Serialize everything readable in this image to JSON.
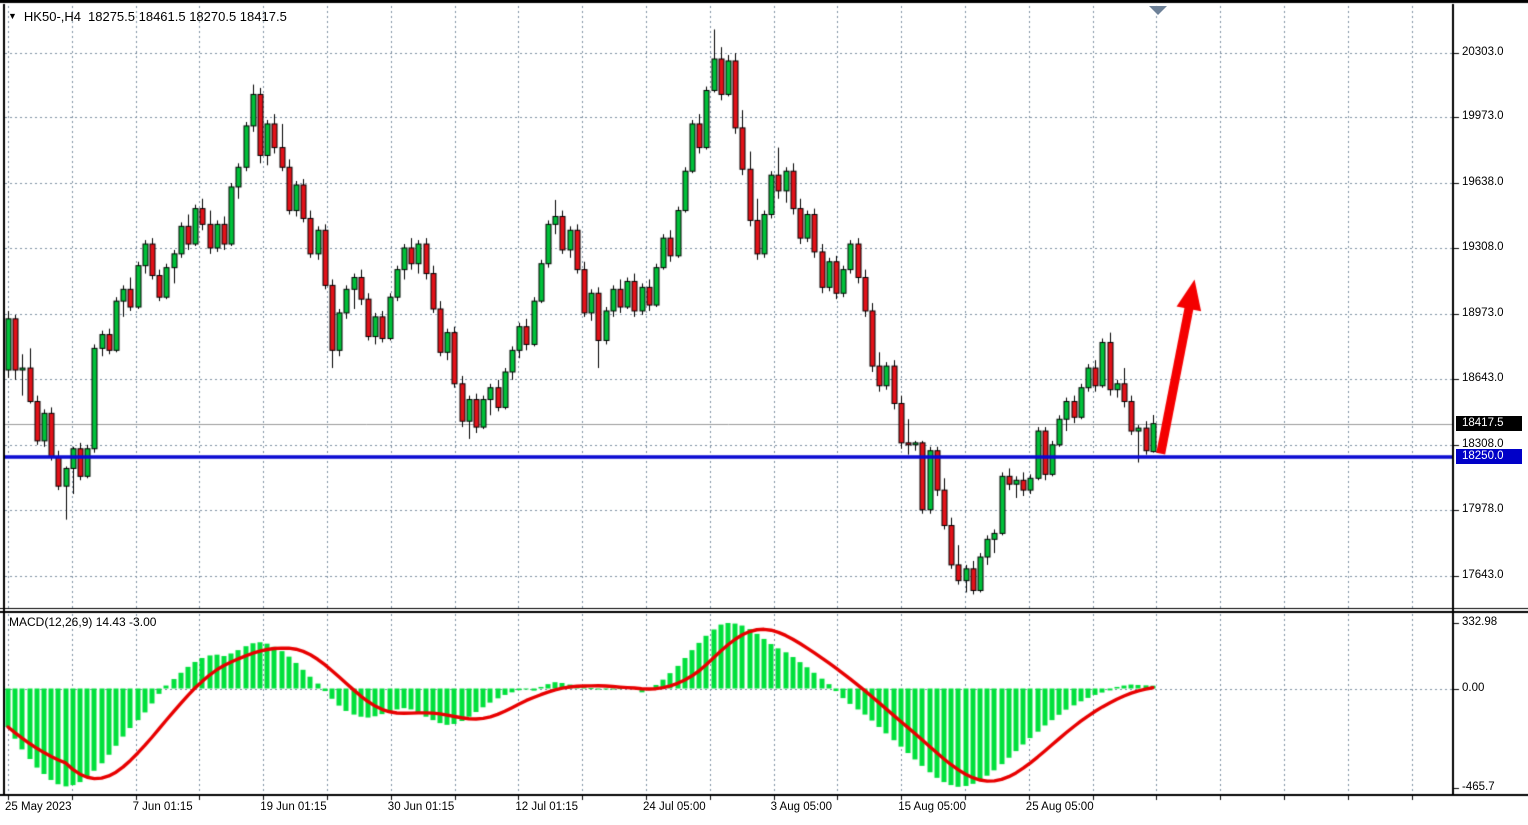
{
  "window": {
    "title_symbol": "HK50-,H4",
    "title_ohlc": "18275.5 18461.5 18270.5 18417.5"
  },
  "price_axis": {
    "labels": [
      "20303.0",
      "19973.0",
      "19638.0",
      "19308.0",
      "18973.0",
      "18643.0",
      "18308.0",
      "17978.0",
      "17643.0"
    ],
    "highlight_labels": [
      {
        "text": "18417.5",
        "kind": "current-price",
        "bg": "#000000",
        "price": 18417.5
      },
      {
        "text": "18250.0",
        "kind": "hline-price",
        "bg": "#0000c8",
        "price": 18250.0
      }
    ]
  },
  "macd_axis": {
    "labels": [
      "332.98",
      "0.00",
      "-465.7"
    ]
  },
  "time_axis": {
    "labels": [
      "25 May 2023",
      "7 Jun 01:15",
      "19 Jun 01:15",
      "30 Jun 01:15",
      "12 Jul 01:15",
      "24 Jul 05:00",
      "3 Aug 05:00",
      "15 Aug 05:00",
      "25 Aug 05:00"
    ]
  },
  "indicator": {
    "label_text": "MACD(12,26,9) 14.43 -3.00",
    "name": "MACD",
    "params": "12,26,9",
    "value": 14.43,
    "signal_value": -3.0
  },
  "colors": {
    "bull": "#00c13a",
    "bear": "#e31219",
    "candle_outline": "#000000",
    "macd_bar": "#00e03c",
    "signal_line": "#e80000",
    "grid": "#7e8fa2",
    "hline_blue": "#0a0ad2",
    "current_price_gray": "#9a9a9a",
    "arrow_red": "#f40000",
    "axis_text": "#000000",
    "border": "#000000",
    "scroll_marker": "#6c8097"
  },
  "chart_data": {
    "type": "candlestick+macd",
    "symbol": "HK50-",
    "timeframe": "H4",
    "title": "HK50- Hong Kong 50 Index, H4",
    "last_bar": {
      "open": 18275.5,
      "high": 18461.5,
      "low": 18270.5,
      "close": 18417.5
    },
    "price_gridlines": [
      20303.0,
      19973.0,
      19638.0,
      19308.0,
      18973.0,
      18643.0,
      18308.0,
      17978.0,
      17643.0
    ],
    "current_price_line": 18417.5,
    "horizontal_line": 18250.0,
    "x_tick_labels": [
      "25 May 2023",
      "7 Jun 01:15",
      "19 Jun 01:15",
      "30 Jun 01:15",
      "12 Jul 01:15",
      "24 Jul 05:00",
      "3 Aug 05:00",
      "15 Aug 05:00",
      "25 Aug 05:00"
    ],
    "candles": [
      [
        18690,
        18990,
        18650,
        18950
      ],
      [
        18950,
        18970,
        18640,
        18690
      ],
      [
        18690,
        18770,
        18560,
        18700
      ],
      [
        18700,
        18800,
        18520,
        18530
      ],
      [
        18530,
        18560,
        18310,
        18330
      ],
      [
        18330,
        18490,
        18300,
        18470
      ],
      [
        18470,
        18500,
        18230,
        18250
      ],
      [
        18250,
        18280,
        18080,
        18100
      ],
      [
        18100,
        18200,
        17930,
        18190
      ],
      [
        18190,
        18300,
        18060,
        18290
      ],
      [
        18290,
        18320,
        18130,
        18150
      ],
      [
        18150,
        18310,
        18140,
        18290
      ],
      [
        18290,
        18820,
        18270,
        18800
      ],
      [
        18800,
        18890,
        18760,
        18870
      ],
      [
        18870,
        18900,
        18770,
        18790
      ],
      [
        18790,
        19060,
        18780,
        19040
      ],
      [
        19040,
        19120,
        18960,
        19100
      ],
      [
        19100,
        19160,
        18990,
        19010
      ],
      [
        19010,
        19240,
        19000,
        19220
      ],
      [
        19220,
        19350,
        19180,
        19330
      ],
      [
        19330,
        19360,
        19150,
        19170
      ],
      [
        19170,
        19200,
        19040,
        19060
      ],
      [
        19060,
        19230,
        19050,
        19210
      ],
      [
        19210,
        19300,
        19130,
        19280
      ],
      [
        19280,
        19440,
        19260,
        19420
      ],
      [
        19420,
        19480,
        19300,
        19330
      ],
      [
        19330,
        19530,
        19320,
        19510
      ],
      [
        19510,
        19560,
        19400,
        19430
      ],
      [
        19430,
        19500,
        19280,
        19310
      ],
      [
        19310,
        19450,
        19290,
        19430
      ],
      [
        19430,
        19470,
        19300,
        19330
      ],
      [
        19330,
        19640,
        19320,
        19620
      ],
      [
        19620,
        19740,
        19560,
        19720
      ],
      [
        19720,
        19950,
        19700,
        19930
      ],
      [
        19930,
        20140,
        19900,
        20090
      ],
      [
        20090,
        20123,
        19740,
        19780
      ],
      [
        19780,
        19960,
        19730,
        19940
      ],
      [
        19940,
        19990,
        19790,
        19820
      ],
      [
        19820,
        19940,
        19700,
        19720
      ],
      [
        19720,
        19760,
        19480,
        19500
      ],
      [
        19500,
        19650,
        19470,
        19630
      ],
      [
        19630,
        19660,
        19440,
        19460
      ],
      [
        19460,
        19500,
        19260,
        19280
      ],
      [
        19280,
        19420,
        19250,
        19400
      ],
      [
        19400,
        19430,
        19100,
        19120
      ],
      [
        19120,
        19150,
        18700,
        18790
      ],
      [
        18790,
        19000,
        18760,
        18980
      ],
      [
        18980,
        19120,
        18950,
        19100
      ],
      [
        19100,
        19180,
        19000,
        19160
      ],
      [
        19160,
        19200,
        19020,
        19050
      ],
      [
        19050,
        19080,
        18840,
        18860
      ],
      [
        18860,
        18980,
        18820,
        18960
      ],
      [
        18960,
        18990,
        18830,
        18850
      ],
      [
        18850,
        19080,
        18840,
        19060
      ],
      [
        19060,
        19220,
        19040,
        19200
      ],
      [
        19200,
        19330,
        19150,
        19310
      ],
      [
        19310,
        19360,
        19200,
        19230
      ],
      [
        19230,
        19350,
        19180,
        19330
      ],
      [
        19330,
        19360,
        19150,
        19180
      ],
      [
        19180,
        19220,
        18980,
        19000
      ],
      [
        19000,
        19040,
        18760,
        18780
      ],
      [
        18780,
        18900,
        18740,
        18880
      ],
      [
        18880,
        18910,
        18600,
        18620
      ],
      [
        18620,
        18660,
        18400,
        18430
      ],
      [
        18430,
        18560,
        18340,
        18540
      ],
      [
        18540,
        18570,
        18370,
        18400
      ],
      [
        18400,
        18560,
        18390,
        18540
      ],
      [
        18540,
        18620,
        18460,
        18600
      ],
      [
        18600,
        18640,
        18480,
        18500
      ],
      [
        18500,
        18700,
        18490,
        18680
      ],
      [
        18680,
        18810,
        18640,
        18790
      ],
      [
        18790,
        18930,
        18750,
        18910
      ],
      [
        18910,
        18950,
        18790,
        18820
      ],
      [
        18820,
        19060,
        18810,
        19040
      ],
      [
        19040,
        19250,
        19030,
        19230
      ],
      [
        19230,
        19450,
        19210,
        19430
      ],
      [
        19430,
        19554,
        19380,
        19470
      ],
      [
        19470,
        19500,
        19280,
        19300
      ],
      [
        19300,
        19420,
        19260,
        19400
      ],
      [
        19400,
        19430,
        19180,
        19200
      ],
      [
        19200,
        19240,
        18960,
        18980
      ],
      [
        18980,
        19100,
        18940,
        19080
      ],
      [
        19080,
        19110,
        18700,
        18840
      ],
      [
        18840,
        19010,
        18820,
        18990
      ],
      [
        18990,
        19120,
        18960,
        19100
      ],
      [
        19100,
        19150,
        18980,
        19010
      ],
      [
        19010,
        19160,
        19000,
        19140
      ],
      [
        19140,
        19180,
        18960,
        18990
      ],
      [
        18990,
        19130,
        18970,
        19110
      ],
      [
        19110,
        19150,
        18990,
        19020
      ],
      [
        19020,
        19230,
        19010,
        19210
      ],
      [
        19210,
        19380,
        19200,
        19360
      ],
      [
        19360,
        19400,
        19240,
        19270
      ],
      [
        19270,
        19520,
        19260,
        19500
      ],
      [
        19500,
        19720,
        19490,
        19700
      ],
      [
        19700,
        19960,
        19690,
        19940
      ],
      [
        19940,
        19990,
        19790,
        19820
      ],
      [
        19820,
        20130,
        19810,
        20110
      ],
      [
        20110,
        20420,
        20100,
        20270
      ],
      [
        20270,
        20330,
        20060,
        20090
      ],
      [
        20090,
        20290,
        20080,
        20260
      ],
      [
        20260,
        20300,
        19890,
        19920
      ],
      [
        19920,
        20010,
        19680,
        19710
      ],
      [
        19710,
        19800,
        19420,
        19450
      ],
      [
        19450,
        19560,
        19250,
        19280
      ],
      [
        19280,
        19500,
        19260,
        19480
      ],
      [
        19480,
        19700,
        19460,
        19680
      ],
      [
        19680,
        19820,
        19560,
        19600
      ],
      [
        19600,
        19720,
        19540,
        19700
      ],
      [
        19700,
        19740,
        19480,
        19510
      ],
      [
        19510,
        19560,
        19330,
        19360
      ],
      [
        19360,
        19500,
        19340,
        19480
      ],
      [
        19480,
        19510,
        19260,
        19290
      ],
      [
        19290,
        19330,
        19080,
        19110
      ],
      [
        19110,
        19260,
        19090,
        19240
      ],
      [
        19240,
        19270,
        19050,
        19080
      ],
      [
        19080,
        19220,
        19060,
        19200
      ],
      [
        19200,
        19350,
        19180,
        19330
      ],
      [
        19330,
        19360,
        19130,
        19160
      ],
      [
        19160,
        19200,
        18960,
        18990
      ],
      [
        18990,
        19030,
        18680,
        18710
      ],
      [
        18710,
        18780,
        18580,
        18610
      ],
      [
        18610,
        18730,
        18590,
        18710
      ],
      [
        18710,
        18740,
        18490,
        18520
      ],
      [
        18520,
        18560,
        18290,
        18320
      ],
      [
        18320,
        18440,
        18260,
        18310
      ],
      [
        18310,
        18330,
        18280,
        18320
      ],
      [
        18320,
        18330,
        17960,
        17980
      ],
      [
        17980,
        18300,
        17960,
        18280
      ],
      [
        18280,
        18300,
        18050,
        18080
      ],
      [
        18080,
        18140,
        17880,
        17900
      ],
      [
        17900,
        17940,
        17680,
        17700
      ],
      [
        17700,
        17800,
        17600,
        17620
      ],
      [
        17620,
        17700,
        17560,
        17680
      ],
      [
        17680,
        17720,
        17550,
        17570
      ],
      [
        17570,
        17760,
        17560,
        17740
      ],
      [
        17740,
        17850,
        17700,
        17830
      ],
      [
        17830,
        17880,
        17760,
        17860
      ],
      [
        17860,
        18170,
        17850,
        18150
      ],
      [
        18150,
        18190,
        18080,
        18110
      ],
      [
        18110,
        18150,
        18040,
        18130
      ],
      [
        18130,
        18170,
        18050,
        18080
      ],
      [
        18080,
        18160,
        18060,
        18140
      ],
      [
        18140,
        18400,
        18130,
        18380
      ],
      [
        18380,
        18400,
        18130,
        18160
      ],
      [
        18160,
        18330,
        18150,
        18310
      ],
      [
        18310,
        18460,
        18300,
        18440
      ],
      [
        18440,
        18550,
        18380,
        18530
      ],
      [
        18530,
        18560,
        18420,
        18450
      ],
      [
        18450,
        18620,
        18440,
        18600
      ],
      [
        18600,
        18720,
        18580,
        18700
      ],
      [
        18700,
        18740,
        18580,
        18610
      ],
      [
        18610,
        18850,
        18600,
        18830
      ],
      [
        18830,
        18880,
        18560,
        18590
      ],
      [
        18590,
        18640,
        18550,
        18620
      ],
      [
        18620,
        18700,
        18500,
        18530
      ],
      [
        18530,
        18560,
        18360,
        18380
      ],
      [
        18380,
        18410,
        18220,
        18395
      ],
      [
        18395,
        18430,
        18260,
        18280
      ],
      [
        18275.5,
        18461.5,
        18270.5,
        18417.5
      ]
    ],
    "macd": {
      "params": [
        12,
        26,
        9
      ],
      "scale": {
        "max": 332.98,
        "min": -465.7,
        "zero": 0.0
      },
      "last_value": 14.43,
      "last_signal": -3.0,
      "histogram": [
        -180,
        -235,
        -285,
        -330,
        -370,
        -400,
        -428,
        -448,
        -458,
        -452,
        -438,
        -415,
        -385,
        -350,
        -310,
        -268,
        -225,
        -185,
        -148,
        -112,
        -70,
        -25,
        15,
        48,
        80,
        110,
        135,
        155,
        168,
        172,
        165,
        178,
        195,
        215,
        230,
        235,
        228,
        212,
        190,
        162,
        130,
        95,
        60,
        25,
        -12,
        -48,
        -80,
        -105,
        -122,
        -132,
        -136,
        -130,
        -120,
        -108,
        -98,
        -92,
        -98,
        -112,
        -132,
        -148,
        -162,
        -170,
        -166,
        -152,
        -132,
        -110,
        -88,
        -66,
        -46,
        -30,
        -18,
        -8,
        -4,
        -10,
        8,
        22,
        32,
        28,
        20,
        12,
        6,
        2,
        -2,
        -4,
        -2,
        2,
        4,
        2,
        -18,
        -8,
        18,
        45,
        78,
        115,
        155,
        195,
        232,
        268,
        300,
        325,
        333,
        330,
        320,
        302,
        278,
        252,
        226,
        204,
        184,
        160,
        134,
        108,
        80,
        50,
        22,
        -12,
        -45,
        -72,
        -98,
        -122,
        -150,
        -180,
        -210,
        -242,
        -272,
        -302,
        -332,
        -362,
        -392,
        -418,
        -438,
        -452,
        -460,
        -456,
        -446,
        -430,
        -408,
        -383,
        -354,
        -324,
        -293,
        -262,
        -232,
        -202,
        -173,
        -148,
        -123,
        -99,
        -79,
        -60,
        -44,
        -30,
        -19,
        -9,
        8,
        15,
        20,
        18,
        16,
        14.43
      ]
    },
    "annotations": [
      {
        "type": "up-arrow",
        "color": "#f40000",
        "from": {
          "bar": 160.1,
          "price": 18265
        },
        "to": {
          "bar": 164.8,
          "price": 19150
        }
      },
      {
        "type": "horizontal-line",
        "color": "#0a0ad2",
        "price": 18250.0
      },
      {
        "type": "current-price-line",
        "color": "#9a9a9a",
        "price": 18417.5
      }
    ]
  }
}
